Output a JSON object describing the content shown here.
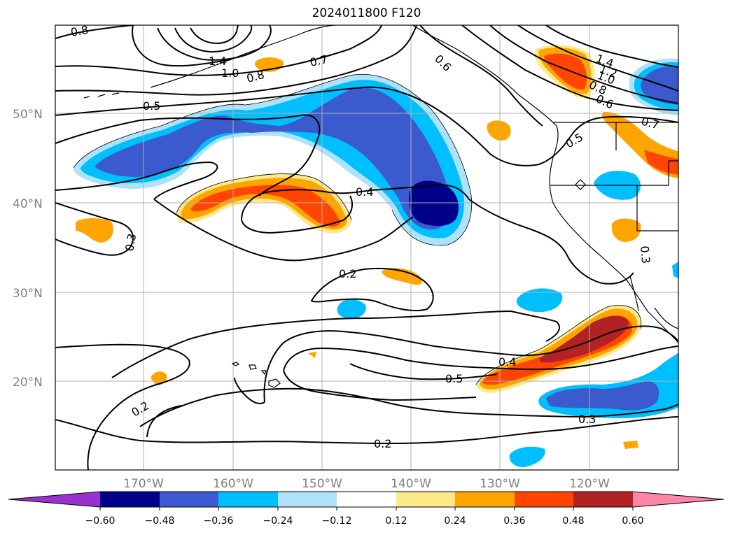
{
  "title": "2024011800 F120",
  "map": {
    "lat_labels": [
      "50°N",
      "40°N",
      "30°N",
      "20°N"
    ],
    "lon_labels": [
      "170°W",
      "160°W",
      "150°W",
      "140°W",
      "130°W",
      "120°W"
    ],
    "contour_labels": [
      "0.8",
      "1.4",
      "1.0",
      "0.8",
      "0.7",
      "0.6",
      "1.4",
      "1.2",
      "1.0",
      "0.8",
      "0.6",
      "0.7",
      "0.5",
      "0.5",
      "0.4",
      "0.3",
      "0.3",
      "0.2",
      "0.4",
      "0.5",
      "0.2",
      "0.3",
      "0.2"
    ]
  },
  "colorbar": {
    "tick_labels": [
      "−0.60",
      "−0.48",
      "−0.36",
      "−0.24",
      "−0.12",
      "0.12",
      "0.24",
      "0.36",
      "0.48",
      "0.60"
    ],
    "colors": [
      "#9932cc",
      "#00008b",
      "#3a5acd",
      "#00bfff",
      "#ade2fa",
      "#ffffff",
      "#fce98a",
      "#ffa500",
      "#ff4500",
      "#b22222",
      "#ff85a8"
    ]
  }
}
